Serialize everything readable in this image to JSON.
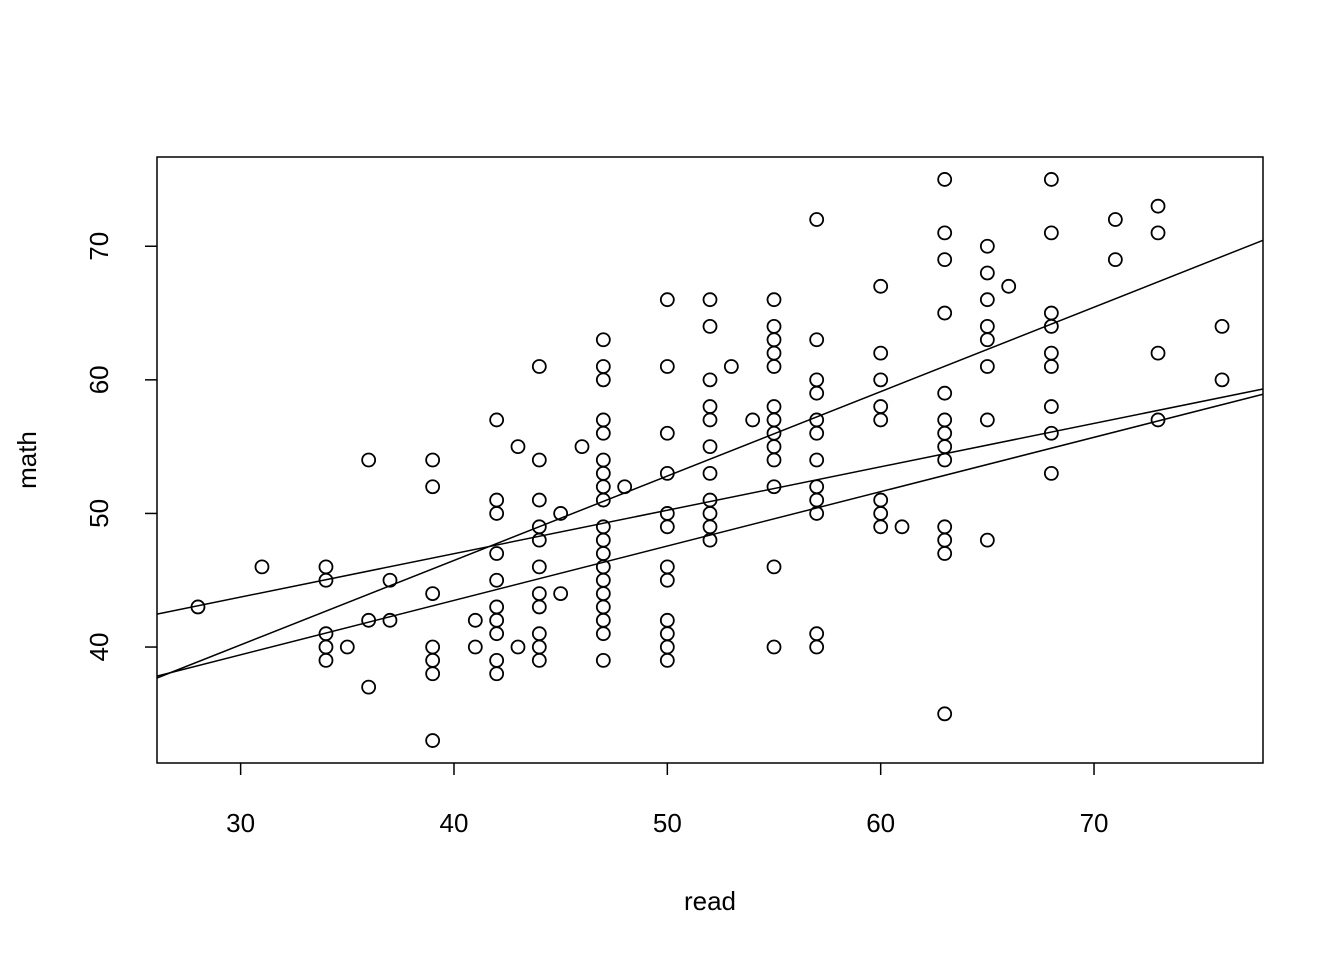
{
  "chart_data": {
    "type": "scatter",
    "x_label": "read",
    "y_label": "math",
    "x": [
      28,
      31,
      34,
      34,
      34,
      34,
      34,
      35,
      36,
      36,
      36,
      37,
      37,
      39,
      39,
      39,
      39,
      39,
      39,
      39,
      41,
      41,
      42,
      42,
      42,
      42,
      42,
      42,
      42,
      42,
      42,
      42,
      43,
      43,
      44,
      44,
      44,
      44,
      44,
      44,
      44,
      44,
      44,
      44,
      44,
      45,
      45,
      46,
      47,
      47,
      47,
      47,
      47,
      47,
      47,
      47,
      47,
      47,
      47,
      47,
      47,
      47,
      47,
      47,
      47,
      47,
      47,
      48,
      50,
      50,
      50,
      50,
      50,
      50,
      50,
      50,
      50,
      50,
      50,
      50,
      52,
      52,
      52,
      52,
      52,
      52,
      52,
      52,
      52,
      52,
      52,
      53,
      54,
      55,
      55,
      55,
      55,
      55,
      55,
      55,
      55,
      55,
      55,
      55,
      55,
      55,
      57,
      57,
      57,
      57,
      57,
      57,
      57,
      57,
      57,
      57,
      57,
      57,
      60,
      60,
      60,
      60,
      60,
      60,
      60,
      60,
      61,
      63,
      63,
      63,
      63,
      63,
      63,
      63,
      63,
      63,
      63,
      63,
      63,
      63,
      65,
      65,
      65,
      65,
      65,
      65,
      65,
      65,
      66,
      68,
      68,
      68,
      68,
      68,
      68,
      68,
      68,
      68,
      71,
      71,
      73,
      73,
      73,
      73,
      76,
      76
    ],
    "y": [
      43,
      46,
      46,
      45,
      41,
      40,
      39,
      40,
      54,
      42,
      37,
      45,
      42,
      54,
      52,
      44,
      40,
      39,
      38,
      33,
      42,
      40,
      57,
      51,
      50,
      47,
      45,
      43,
      42,
      41,
      39,
      38,
      55,
      40,
      61,
      54,
      51,
      49,
      48,
      46,
      44,
      43,
      41,
      40,
      39,
      50,
      44,
      55,
      63,
      61,
      60,
      57,
      56,
      54,
      53,
      52,
      51,
      49,
      48,
      47,
      46,
      45,
      44,
      43,
      42,
      41,
      39,
      52,
      66,
      61,
      56,
      53,
      50,
      49,
      46,
      45,
      42,
      41,
      40,
      39,
      66,
      64,
      60,
      58,
      57,
      55,
      53,
      51,
      50,
      49,
      48,
      61,
      57,
      66,
      64,
      63,
      62,
      61,
      58,
      57,
      56,
      55,
      54,
      52,
      46,
      40,
      72,
      63,
      60,
      59,
      57,
      56,
      54,
      52,
      51,
      50,
      41,
      40,
      67,
      62,
      60,
      58,
      57,
      51,
      50,
      49,
      49,
      75,
      71,
      69,
      65,
      59,
      57,
      56,
      55,
      54,
      49,
      48,
      47,
      35,
      70,
      68,
      66,
      64,
      63,
      61,
      57,
      48,
      67,
      75,
      71,
      65,
      64,
      62,
      61,
      58,
      56,
      53,
      72,
      69,
      73,
      71,
      62,
      57,
      64,
      60
    ],
    "lines": [
      {
        "intercept": 21.2,
        "slope": 0.632
      },
      {
        "intercept": 33.99,
        "slope": 0.325
      },
      {
        "intercept": 27.21,
        "slope": 0.407
      }
    ],
    "xlim": [
      26.08,
      77.92
    ],
    "ylim": [
      31.32,
      76.68
    ],
    "xticks": [
      30,
      40,
      50,
      60,
      70
    ],
    "yticks": [
      40,
      50,
      60,
      70
    ]
  }
}
